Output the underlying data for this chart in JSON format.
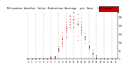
{
  "title": "Milwaukee Weather Solar Radiation Average  per Hour  (24 Hours)",
  "hours": [
    0,
    1,
    2,
    3,
    4,
    5,
    6,
    7,
    8,
    9,
    10,
    11,
    12,
    13,
    14,
    15,
    16,
    17,
    18,
    19,
    20,
    21,
    22,
    23
  ],
  "avg_values": [
    0,
    0,
    0,
    0,
    0,
    0,
    2,
    15,
    60,
    120,
    185,
    220,
    240,
    210,
    175,
    130,
    75,
    30,
    5,
    0,
    0,
    0,
    0,
    0
  ],
  "dot_color_avg": "#000000",
  "dot_color_scatter": "#cc0000",
  "legend_color": "#cc0000",
  "legend_border": "#000000",
  "grid_color": "#999999",
  "bg_color": "#ffffff",
  "border_color": "#000000",
  "ylim": [
    0,
    280
  ],
  "yticks": [
    0,
    50,
    100,
    150,
    200,
    250
  ],
  "ytick_labels": [
    "0",
    "50",
    "100",
    "150",
    "200",
    "250"
  ]
}
